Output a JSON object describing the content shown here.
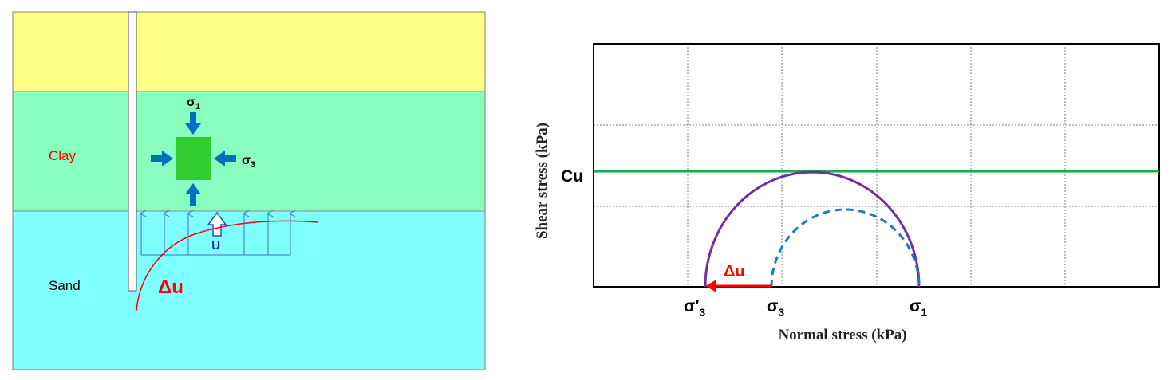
{
  "soil_profile": {
    "layers": {
      "top": {
        "color": "#ffff88"
      },
      "clay": {
        "label": "Clay",
        "label_color": "#ff0000",
        "color": "#88ffbf"
      },
      "sand": {
        "label": "Sand",
        "label_color": "#000000",
        "color": "#80ffff"
      }
    },
    "stress_element": {
      "sigma1": {
        "base": "σ",
        "sub": "1"
      },
      "sigma3": {
        "base": "σ",
        "sub": "3"
      },
      "color": "#33cc33",
      "arrow_color": "#0070c0"
    },
    "pore_pressure": {
      "u_label": "u",
      "u_color": "#0000cc",
      "delta_u_label": "Δu",
      "delta_u_color": "#ff0000"
    }
  },
  "mohr_plot": {
    "x_axis_label": "Normal stress (kPa)",
    "y_axis_label": "Shear stress (kPa)",
    "cu_label": "Cu",
    "envelope_color": "#1aaa4a",
    "total_circle_color": "#7030a0",
    "effective_circle_color": "#1f77c9",
    "delta_u_label": "Δu",
    "delta_u_color": "#ff0000",
    "x_ticks": {
      "sigma3_eff": {
        "base": "σ",
        "prime": "′",
        "sub": "3"
      },
      "sigma3": {
        "base": "σ",
        "sub": "3"
      },
      "sigma1": {
        "base": "σ",
        "sub": "1"
      }
    }
  }
}
